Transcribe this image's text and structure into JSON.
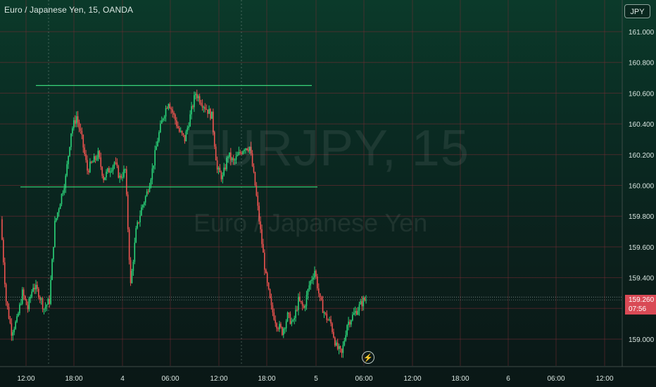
{
  "header": {
    "symbol_title": "Euro / Japanese Yen, 15, OANDA",
    "currency_button": "JPY"
  },
  "watermark": {
    "ticker": "EURJPY, 15",
    "name": "Euro / Japanese Yen"
  },
  "price_tag": {
    "price": "159.260",
    "countdown": "07:56"
  },
  "colors": {
    "up": "#26a69a",
    "up_bright": "#2bd47a",
    "down": "#ef5350",
    "grid": "#7a2c34",
    "line": "#39d67a",
    "price_tag": "#d94a55"
  },
  "icons": {
    "replay": "lightning-icon"
  },
  "chart_data": {
    "type": "candlestick",
    "title": "Euro / Japanese Yen, 15, OANDA",
    "ylim": [
      158.82,
      161.2
    ],
    "y_ticks": [
      "161.000",
      "160.800",
      "160.600",
      "160.400",
      "160.200",
      "160.000",
      "159.800",
      "159.600",
      "159.400",
      "159.200",
      "159.000"
    ],
    "x_ticks": [
      "12:00",
      "18:00",
      "4",
      "06:00",
      "12:00",
      "18:00",
      "5",
      "06:00",
      "12:00",
      "18:00",
      "6",
      "06:00",
      "12:00"
    ],
    "last_price": 159.26,
    "horizontal_lines": [
      {
        "y": 160.65,
        "x_start": "13:00",
        "x_end": "5 00:00"
      },
      {
        "y": 159.99,
        "x_start": "11:00",
        "x_end": "5 00:00"
      }
    ],
    "close_path": [
      [
        0,
        159.78
      ],
      [
        4,
        159.25
      ],
      [
        8,
        159.05
      ],
      [
        12,
        159.12
      ],
      [
        16,
        159.3
      ],
      [
        20,
        159.2
      ],
      [
        24,
        159.35
      ],
      [
        28,
        159.3
      ],
      [
        32,
        159.2
      ],
      [
        36,
        159.25
      ],
      [
        40,
        159.75
      ],
      [
        44,
        159.9
      ],
      [
        48,
        160.05
      ],
      [
        52,
        160.35
      ],
      [
        56,
        160.45
      ],
      [
        60,
        160.3
      ],
      [
        64,
        160.1
      ],
      [
        68,
        160.15
      ],
      [
        72,
        160.2
      ],
      [
        76,
        160.05
      ],
      [
        80,
        160.1
      ],
      [
        84,
        160.15
      ],
      [
        88,
        160.05
      ],
      [
        92,
        160.1
      ],
      [
        96,
        159.35
      ],
      [
        100,
        159.7
      ],
      [
        104,
        159.85
      ],
      [
        108,
        159.95
      ],
      [
        112,
        160.1
      ],
      [
        116,
        160.3
      ],
      [
        120,
        160.45
      ],
      [
        124,
        160.55
      ],
      [
        128,
        160.45
      ],
      [
        132,
        160.35
      ],
      [
        136,
        160.3
      ],
      [
        140,
        160.45
      ],
      [
        144,
        160.6
      ],
      [
        148,
        160.55
      ],
      [
        152,
        160.5
      ],
      [
        156,
        160.45
      ],
      [
        160,
        160.1
      ],
      [
        164,
        160.05
      ],
      [
        168,
        160.2
      ],
      [
        172,
        160.15
      ],
      [
        176,
        160.2
      ],
      [
        180,
        160.25
      ],
      [
        184,
        160.25
      ],
      [
        188,
        160.0
      ],
      [
        192,
        159.7
      ],
      [
        196,
        159.4
      ],
      [
        200,
        159.2
      ],
      [
        204,
        159.1
      ],
      [
        208,
        159.05
      ],
      [
        212,
        159.15
      ],
      [
        216,
        159.1
      ],
      [
        220,
        159.25
      ],
      [
        224,
        159.2
      ],
      [
        228,
        159.35
      ],
      [
        232,
        159.45
      ],
      [
        236,
        159.25
      ],
      [
        240,
        159.15
      ],
      [
        244,
        159.1
      ],
      [
        248,
        158.95
      ],
      [
        252,
        158.9
      ],
      [
        256,
        159.1
      ],
      [
        260,
        159.15
      ],
      [
        264,
        159.2
      ],
      [
        268,
        159.25
      ],
      [
        270,
        159.26
      ]
    ]
  }
}
